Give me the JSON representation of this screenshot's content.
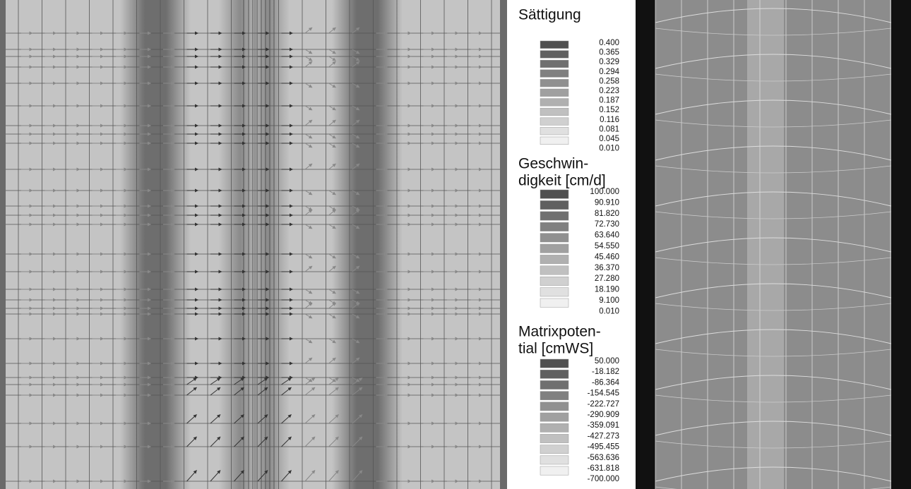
{
  "legends": [
    {
      "title_lines": [
        "Sättigung"
      ],
      "labels": [
        "0.400",
        "0.365",
        "0.329",
        "0.294",
        "0.258",
        "0.223",
        "0.187",
        "0.152",
        "0.116",
        "0.081",
        "0.045",
        "0.010"
      ]
    },
    {
      "title_lines": [
        "Geschwin-",
        "digkeit [cm/d]"
      ],
      "labels": [
        "100.000",
        "90.910",
        "81.820",
        "72.730",
        "63.640",
        "54.550",
        "45.460",
        "36.370",
        "27.280",
        "18.190",
        "9.100",
        "0.010"
      ]
    },
    {
      "title_lines": [
        "Matrixpoten-",
        "tial [cmWS]"
      ],
      "labels": [
        "50.000",
        "-18.182",
        "-86.364",
        "-154.545",
        "-222.727",
        "-290.909",
        "-359.091",
        "-427.273",
        "-495.455",
        "-563.636",
        "-631.818",
        "-700.000"
      ]
    }
  ]
}
